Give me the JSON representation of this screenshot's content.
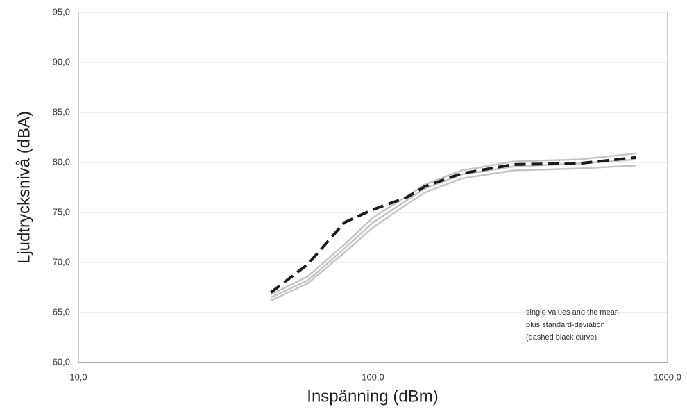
{
  "chart_data": {
    "type": "line",
    "xlabel": "Inspänning (dBm)",
    "ylabel": "Ljudtrycksnivå (dBA)",
    "annotation": [
      "single values and the mean",
      "plus standard-deviation",
      "(dashed black curve)"
    ],
    "xscale": "log",
    "xlim": [
      10,
      1000
    ],
    "xticks": [
      {
        "value": 10,
        "label": "10,0"
      },
      {
        "value": 100,
        "label": "100,0"
      },
      {
        "value": 1000,
        "label": "1000,0"
      }
    ],
    "ylim": [
      60,
      95
    ],
    "yticks": [
      {
        "value": 60,
        "label": "60,0"
      },
      {
        "value": 65,
        "label": "65,0"
      },
      {
        "value": 70,
        "label": "70,0"
      },
      {
        "value": 75,
        "label": "75,0"
      },
      {
        "value": 80,
        "label": "80,0"
      },
      {
        "value": 85,
        "label": "85,0"
      },
      {
        "value": 90,
        "label": "90,0"
      },
      {
        "value": 95,
        "label": "95,0"
      }
    ],
    "grid": true,
    "x": [
      45,
      60,
      80,
      100,
      130,
      150,
      200,
      300,
      500,
      780
    ],
    "series": [
      {
        "color": "#c4c4c4",
        "values": [
          66.8,
          68.6,
          71.8,
          74.5,
          76.6,
          77.8,
          79.2,
          80.1,
          80.3,
          80.9
        ]
      },
      {
        "color": "#c4c4c4",
        "values": [
          66.5,
          68.2,
          71.4,
          74.0,
          76.2,
          77.4,
          78.8,
          79.6,
          79.9,
          80.3
        ]
      },
      {
        "color": "#c4c4c4",
        "values": [
          66.2,
          67.9,
          71.0,
          73.5,
          75.8,
          77.0,
          78.4,
          79.2,
          79.4,
          79.7
        ]
      },
      {
        "color": "#1a1a1a",
        "dashed": true,
        "values": [
          67.0,
          69.8,
          74.0,
          75.3,
          76.5,
          77.6,
          78.9,
          79.8,
          79.9,
          80.5
        ]
      }
    ]
  }
}
